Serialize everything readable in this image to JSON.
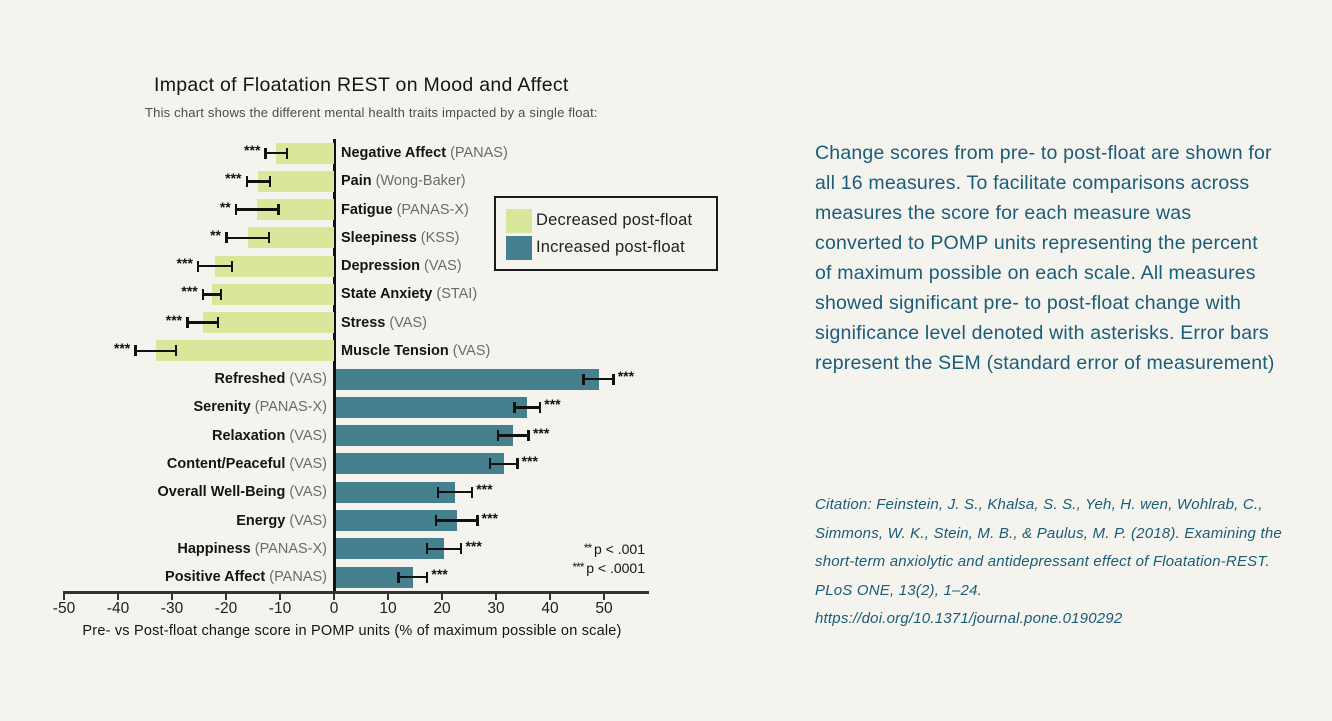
{
  "colors": {
    "background": "#f4f3ee",
    "decrease_bar": "#d8e79a",
    "increase_bar": "#45808f",
    "accent_text": "#1b5c77",
    "axis": "#111111"
  },
  "chart": {
    "title": "Impact of Floatation REST on Mood and Affect",
    "subtitle": "This chart shows the different mental health traits impacted by a single float:",
    "x_axis_label": "Pre- vs Post-float change score in POMP units (% of maximum possible on scale)",
    "legend": [
      {
        "label": "Decreased post-float",
        "color": "#d8e79a"
      },
      {
        "label": "Increased post-float",
        "color": "#45808f"
      }
    ],
    "p_note_line1": "** p < .001",
    "p_note_line2": "*** p < .0001"
  },
  "chart_data": {
    "type": "bar",
    "orientation": "horizontal",
    "x_unit": "POMP change score (% of maximum possible)",
    "xlim": [
      -50,
      55
    ],
    "xticks": [
      -50,
      -40,
      -30,
      -20,
      -10,
      0,
      10,
      20,
      30,
      40,
      50
    ],
    "grid": false,
    "legend_position": "upper-right-inside",
    "measures": [
      {
        "label": "Negative Affect",
        "scale": "(PANAS)",
        "value": -10.7,
        "sem": 2.0,
        "significance": "***",
        "direction": "decrease"
      },
      {
        "label": "Pain",
        "scale": "(Wong-Baker)",
        "value": -14.0,
        "sem": 2.2,
        "significance": "***",
        "direction": "decrease"
      },
      {
        "label": "Fatigue",
        "scale": "(PANAS-X)",
        "value": -14.2,
        "sem": 4.0,
        "significance": "**",
        "direction": "decrease"
      },
      {
        "label": "Sleepiness",
        "scale": "(KSS)",
        "value": -16.0,
        "sem": 4.0,
        "significance": "**",
        "direction": "decrease"
      },
      {
        "label": "Depression",
        "scale": "(VAS)",
        "value": -22.0,
        "sem": 3.2,
        "significance": "***",
        "direction": "decrease"
      },
      {
        "label": "State Anxiety",
        "scale": "(STAI)",
        "value": -22.6,
        "sem": 1.7,
        "significance": "***",
        "direction": "decrease"
      },
      {
        "label": "Stress",
        "scale": "(VAS)",
        "value": -24.3,
        "sem": 2.9,
        "significance": "***",
        "direction": "decrease"
      },
      {
        "label": "Muscle Tension",
        "scale": "(VAS)",
        "value": -33.0,
        "sem": 3.8,
        "significance": "***",
        "direction": "decrease"
      },
      {
        "label": "Refreshed",
        "scale": "(VAS)",
        "value": 49.0,
        "sem": 2.8,
        "significance": "***",
        "direction": "increase"
      },
      {
        "label": "Serenity",
        "scale": "(PANAS-X)",
        "value": 35.8,
        "sem": 2.4,
        "significance": "***",
        "direction": "increase"
      },
      {
        "label": "Relaxation",
        "scale": "(VAS)",
        "value": 33.2,
        "sem": 2.9,
        "significance": "***",
        "direction": "increase"
      },
      {
        "label": "Content/Peaceful",
        "scale": "(VAS)",
        "value": 31.4,
        "sem": 2.6,
        "significance": "***",
        "direction": "increase"
      },
      {
        "label": "Overall Well-Being",
        "scale": "(VAS)",
        "value": 22.4,
        "sem": 3.2,
        "significance": "***",
        "direction": "increase"
      },
      {
        "label": "Energy",
        "scale": "(VAS)",
        "value": 22.7,
        "sem": 3.9,
        "significance": "***",
        "direction": "increase"
      },
      {
        "label": "Happiness",
        "scale": "(PANAS-X)",
        "value": 20.4,
        "sem": 3.2,
        "significance": "***",
        "direction": "increase"
      },
      {
        "label": "Positive Affect",
        "scale": "(PANAS)",
        "value": 14.6,
        "sem": 2.7,
        "significance": "***",
        "direction": "increase"
      }
    ]
  },
  "right_panel": {
    "description": "Change scores from pre- to post-float are shown for all 16 measures. To facilitate comparisons across measures the score for each measure was converted to POMP units representing the percent of maximum possible on each scale. All measures showed significant pre- to post-float change with significance level denoted with asterisks. Error bars represent the SEM (standard error of measurement)",
    "citation": "Citation: Feinstein, J. S., Khalsa, S. S., Yeh, H. wen, Wohlrab, C., Simmons, W. K., Stein, M. B., & Paulus, M. P. (2018). Examining the short-term anxiolytic and antidepressant effect of Floatation-REST. PLoS ONE, 13(2), 1–24. https://doi.org/10.1371/journal.pone.0190292"
  }
}
